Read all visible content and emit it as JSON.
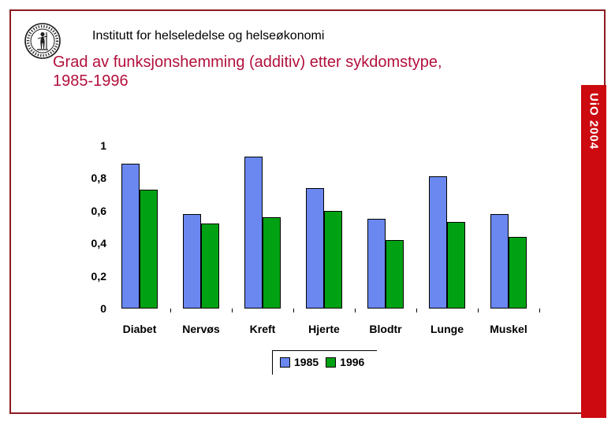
{
  "slide": {
    "header": "Institutt for helseledelse og helseøkonomi",
    "title_line1": "Grad av funksjonshemming (additiv) etter sykdomstype,",
    "title_line2": "1985-1996",
    "title_color": "#B2103C",
    "frame_color": "#8C1A20",
    "sidebar": {
      "label": "UiO 2004",
      "background_color": "#CC0A10",
      "text_color": "#FFFFFF"
    },
    "logo_name": "university-of-oslo-seal"
  },
  "chart_data": {
    "type": "bar",
    "categories": [
      "Diabet",
      "Nervøs",
      "Kreft",
      "Hjerte",
      "Blodtr",
      "Lunge",
      "Muskel"
    ],
    "series": [
      {
        "name": "1985",
        "color": "#6A88F0",
        "values": [
          0.89,
          0.58,
          0.93,
          0.74,
          0.55,
          0.81,
          0.58
        ]
      },
      {
        "name": "1996",
        "color": "#00A214",
        "values": [
          0.73,
          0.52,
          0.56,
          0.6,
          0.42,
          0.53,
          0.44
        ]
      }
    ],
    "title": "",
    "xlabel": "",
    "ylabel": "",
    "ylim": [
      0,
      1
    ],
    "yticks": [
      {
        "label": "1",
        "value": 1.0
      },
      {
        "label": "0,8",
        "value": 0.8
      },
      {
        "label": "0,6",
        "value": 0.6
      },
      {
        "label": "0,4",
        "value": 0.4
      },
      {
        "label": "0,2",
        "value": 0.2
      },
      {
        "label": "0",
        "value": 0.0
      }
    ],
    "grid": false,
    "axis_lines": false,
    "legend_position": "bottom-center"
  }
}
